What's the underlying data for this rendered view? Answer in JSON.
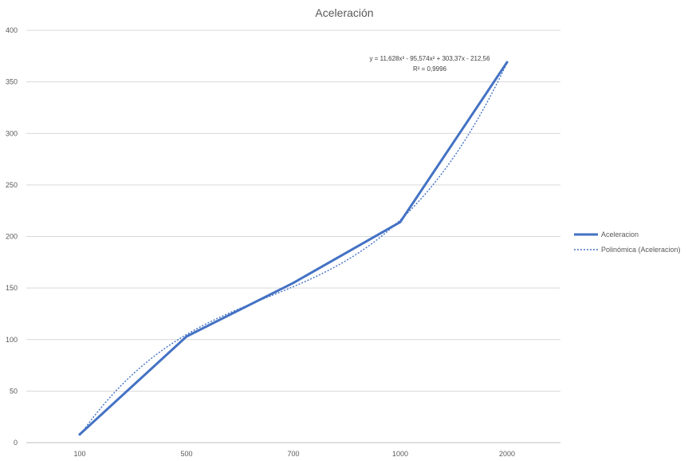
{
  "chart_data": {
    "type": "line",
    "title": "Aceleración",
    "categories": [
      "100",
      "500",
      "700",
      "1000",
      "2000"
    ],
    "series": [
      {
        "name": "Aceleracion",
        "values": [
          8,
          103,
          155,
          214,
          369
        ]
      }
    ],
    "trendline": {
      "name": "Polinómica (Aceleracion)",
      "coefficients": [
        11.628,
        -95.574,
        303.37,
        -212.56
      ],
      "equation": "y = 11,628x³ - 95,574x² + 303,37x - 212,56",
      "r_squared": "R² = 0,9996"
    },
    "ylim": [
      0,
      400
    ],
    "yticks": [
      "0",
      "50",
      "100",
      "150",
      "200",
      "250",
      "300",
      "350",
      "400"
    ],
    "grid": true,
    "legend_position": "right",
    "colors": {
      "series": "#4472C4",
      "grid": "#d9d9d9",
      "text": "#595959"
    }
  }
}
